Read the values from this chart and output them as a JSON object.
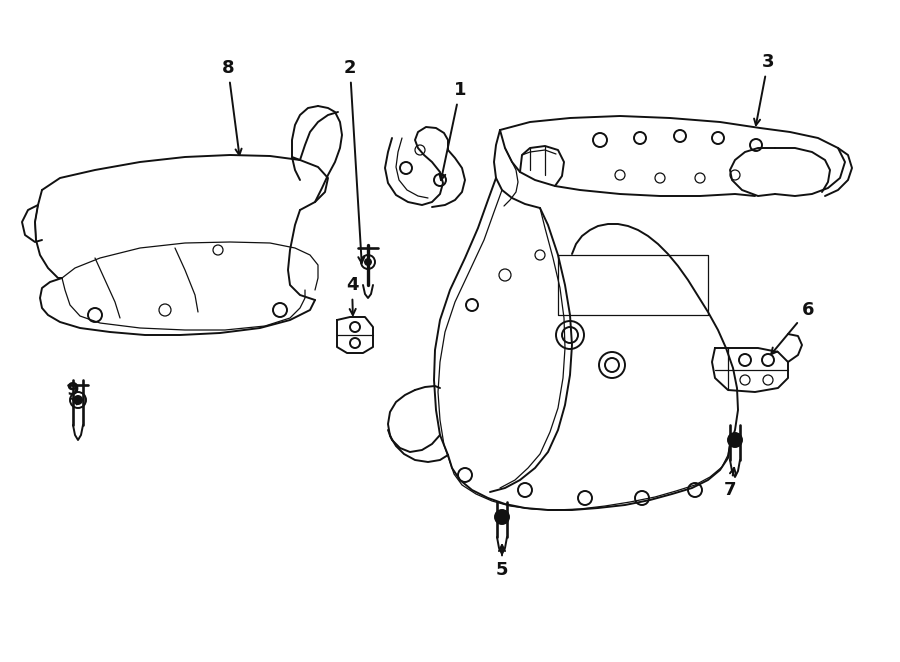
{
  "bg_color": "#ffffff",
  "line_color": "#111111",
  "lw_main": 1.4,
  "lw_inner": 0.9,
  "fig_width": 9.0,
  "fig_height": 6.62,
  "dpi": 100
}
